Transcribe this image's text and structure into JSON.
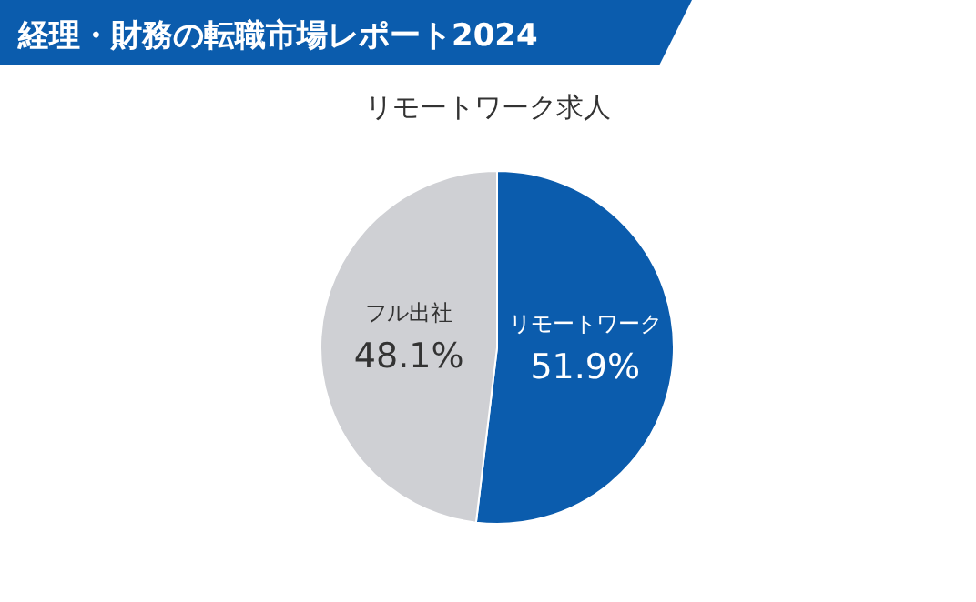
{
  "chart_data": {
    "type": "pie",
    "title": "経理・財務の転職市場レポート2024",
    "subtitle": "リモートワーク求人",
    "categories": [
      "リモートワーク",
      "フル出社"
    ],
    "values": [
      51.9,
      48.1
    ],
    "colors": [
      "#0b5cad",
      "#cfd0d4"
    ],
    "value_labels": [
      "51.9%",
      "48.1%"
    ]
  }
}
